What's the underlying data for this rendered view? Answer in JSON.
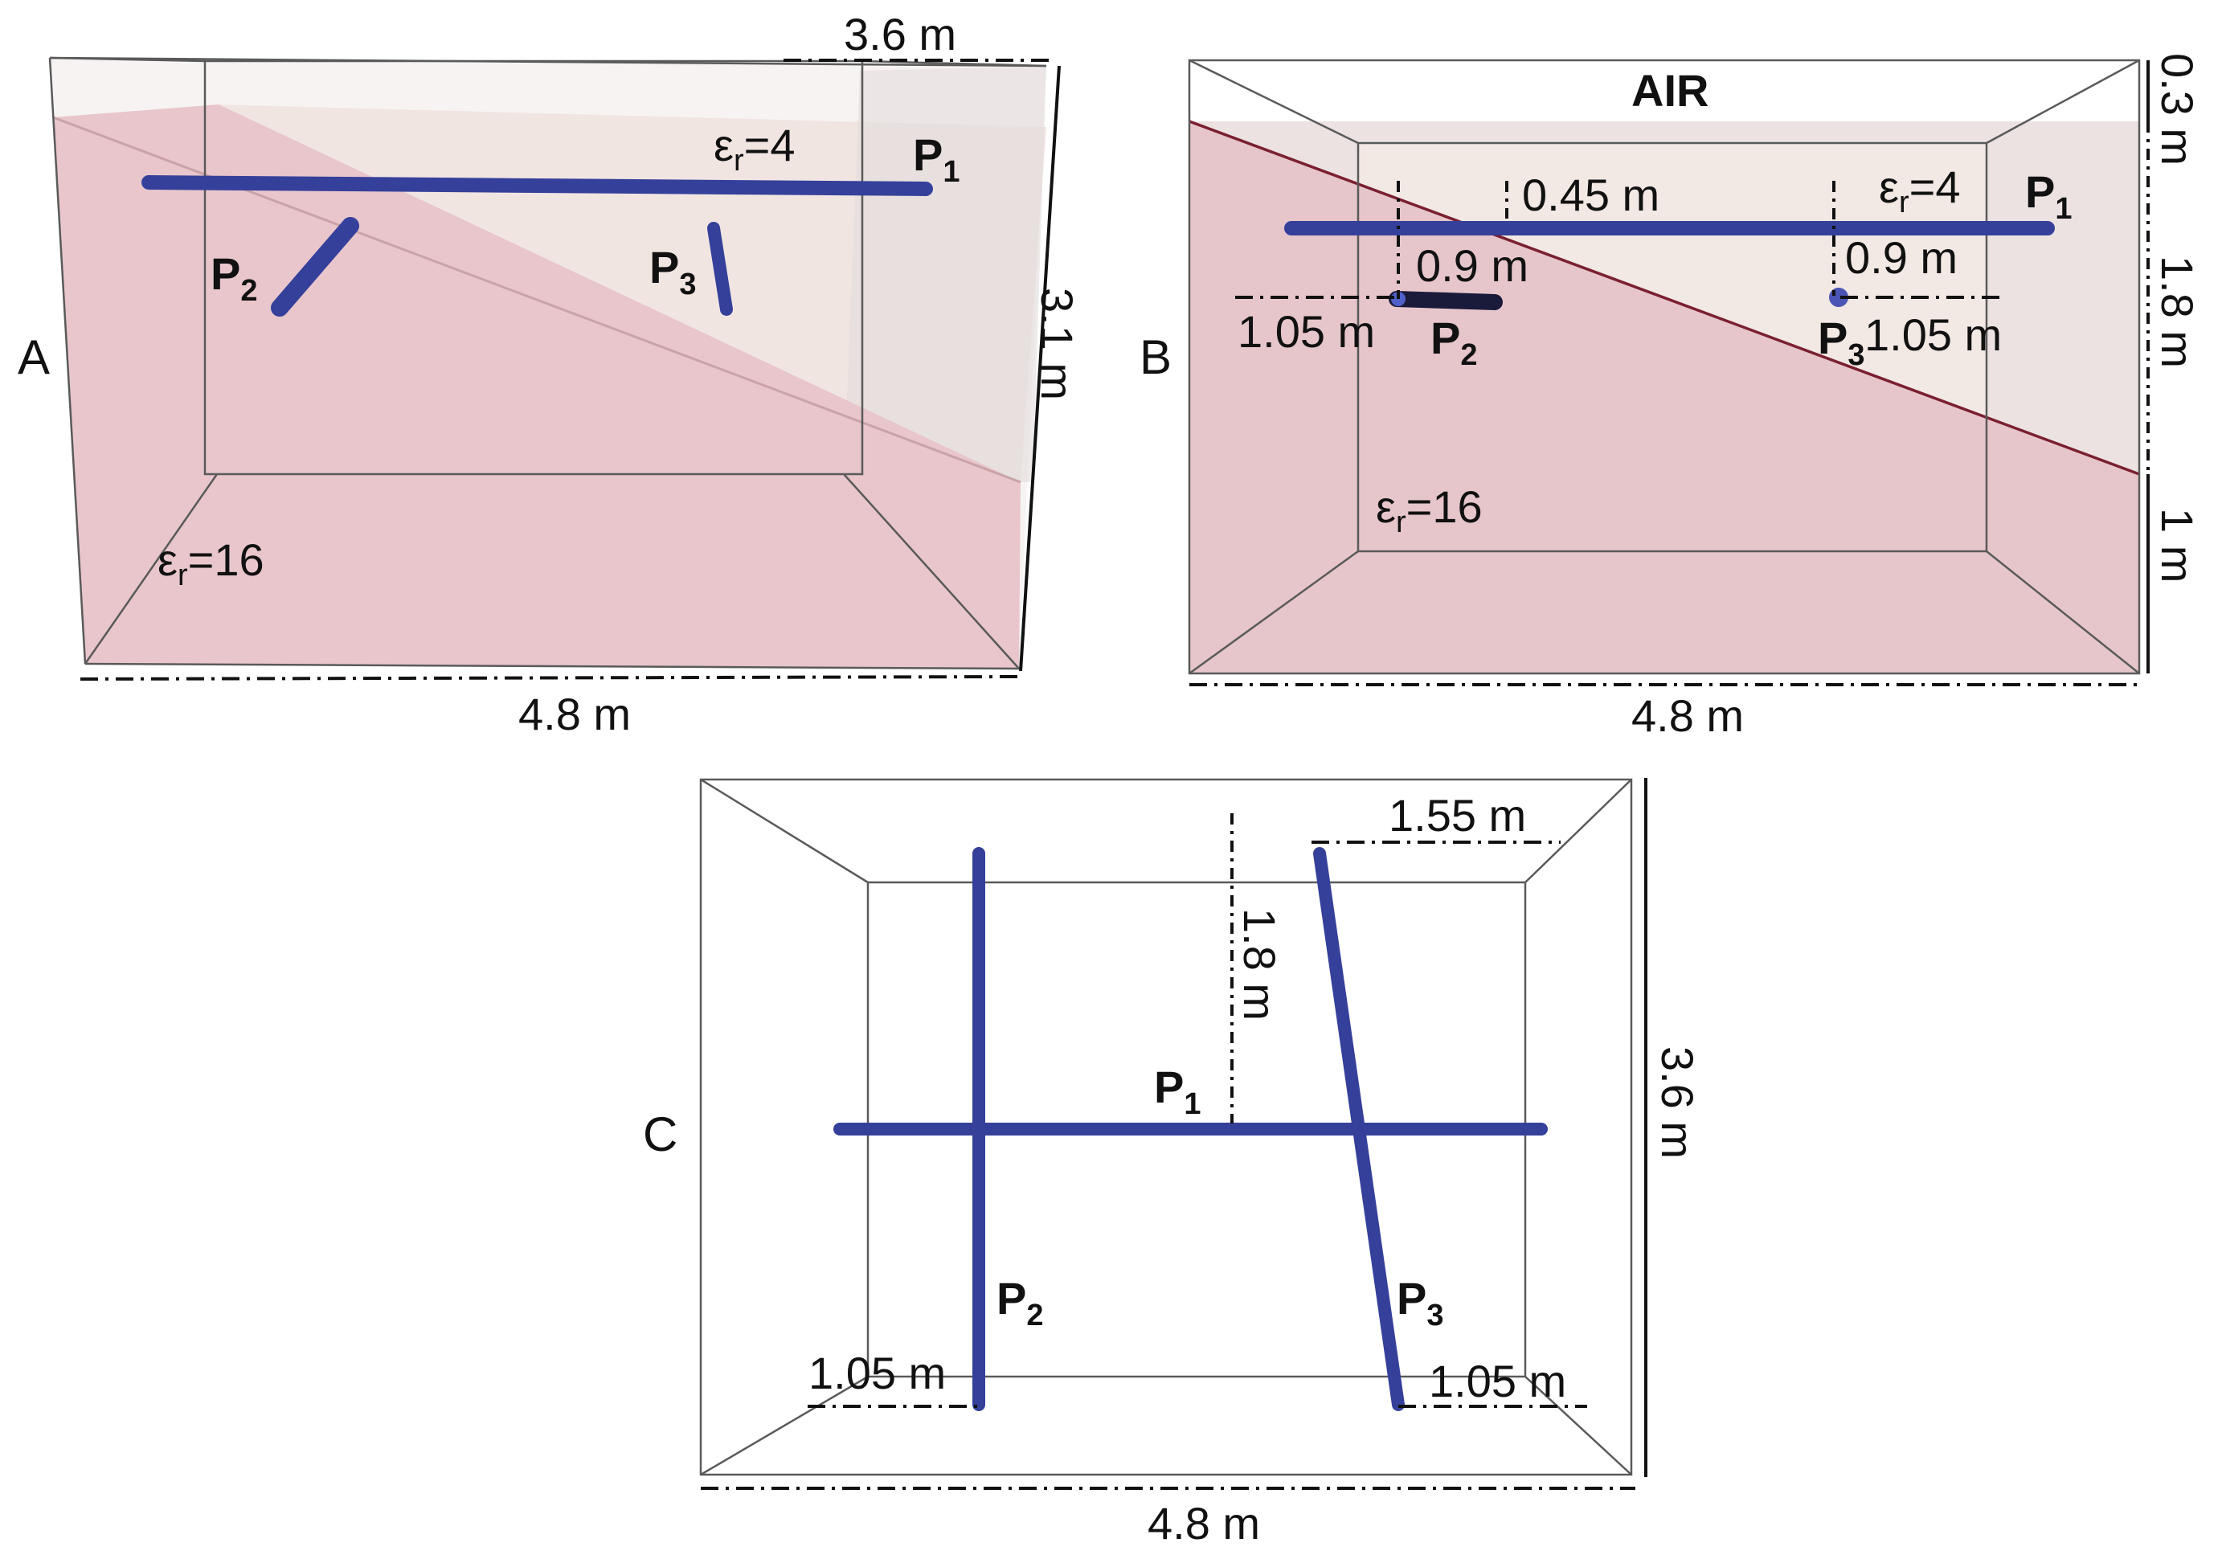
{
  "panels": {
    "A": {
      "label": "A",
      "dims": {
        "top": "3.6 m",
        "right": "3.1 m",
        "bottom": "4.8 m"
      },
      "eps_upper": {
        "sym": "ε",
        "sub": "r",
        "rest": "=4"
      },
      "eps_lower": {
        "sym": "ε",
        "sub": "r",
        "rest": "=16"
      },
      "pipes": {
        "p1": {
          "main": "P",
          "sub": "1"
        },
        "p2": {
          "main": "P",
          "sub": "2"
        },
        "p3": {
          "main": "P",
          "sub": "3"
        }
      }
    },
    "B": {
      "label": "B",
      "air": "AIR",
      "dims": {
        "air_thickness": "0.3 m",
        "middle": "1.8 m",
        "lower": "1 m",
        "bottom": "4.8 m",
        "p1_depth": "0.45 m",
        "p2_depth": "0.9 m",
        "p3_depth": "0.9 m",
        "p2_offset": "1.05 m",
        "p3_offset": "1.05 m"
      },
      "eps_upper": {
        "sym": "ε",
        "sub": "r",
        "rest": "=4"
      },
      "eps_lower": {
        "sym": "ε",
        "sub": "r",
        "rest": "=16"
      },
      "pipes": {
        "p1": {
          "main": "P",
          "sub": "1"
        },
        "p2": {
          "main": "P",
          "sub": "2"
        },
        "p3": {
          "main": "P",
          "sub": "3"
        }
      }
    },
    "C": {
      "label": "C",
      "dims": {
        "p3_top": "1.55 m",
        "p1_offset": "1.8 m",
        "right": "3.6 m",
        "bottom": "4.8 m",
        "p2_bottom": "1.05 m",
        "p3_bottom": "1.05 m"
      },
      "pipes": {
        "p1": {
          "main": "P",
          "sub": "1"
        },
        "p2": {
          "main": "P",
          "sub": "2"
        },
        "p3": {
          "main": "P",
          "sub": "3"
        }
      }
    }
  },
  "colors": {
    "pipe": "#35409a",
    "upper_layer": "#f1e5e2",
    "lower_layer": "#e8c6cc",
    "air": "#ececec"
  }
}
